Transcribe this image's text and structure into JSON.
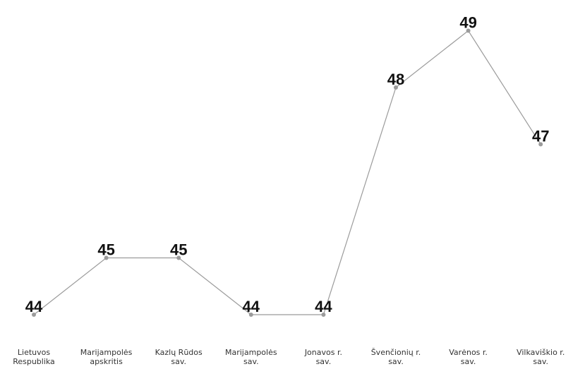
{
  "chart_data": {
    "type": "line",
    "categories": [
      [
        "Lietuvos",
        "Respublika"
      ],
      [
        "Marijampolės",
        "apskritis"
      ],
      [
        "Kazlų Rūdos",
        "sav."
      ],
      [
        "Marijampolės",
        "sav."
      ],
      [
        "Jonavos r.",
        "sav."
      ],
      [
        "Švenčionių r.",
        "sav."
      ],
      [
        "Varėnos r.",
        "sav."
      ],
      [
        "Vilkaviškio r.",
        "sav."
      ]
    ],
    "values": [
      44,
      45,
      45,
      44,
      44,
      48,
      49,
      47
    ],
    "colors": {
      "line": "#9b9b9b",
      "point": "#9b9b9b",
      "label": "#111111"
    },
    "legend": "none",
    "grid": false
  }
}
